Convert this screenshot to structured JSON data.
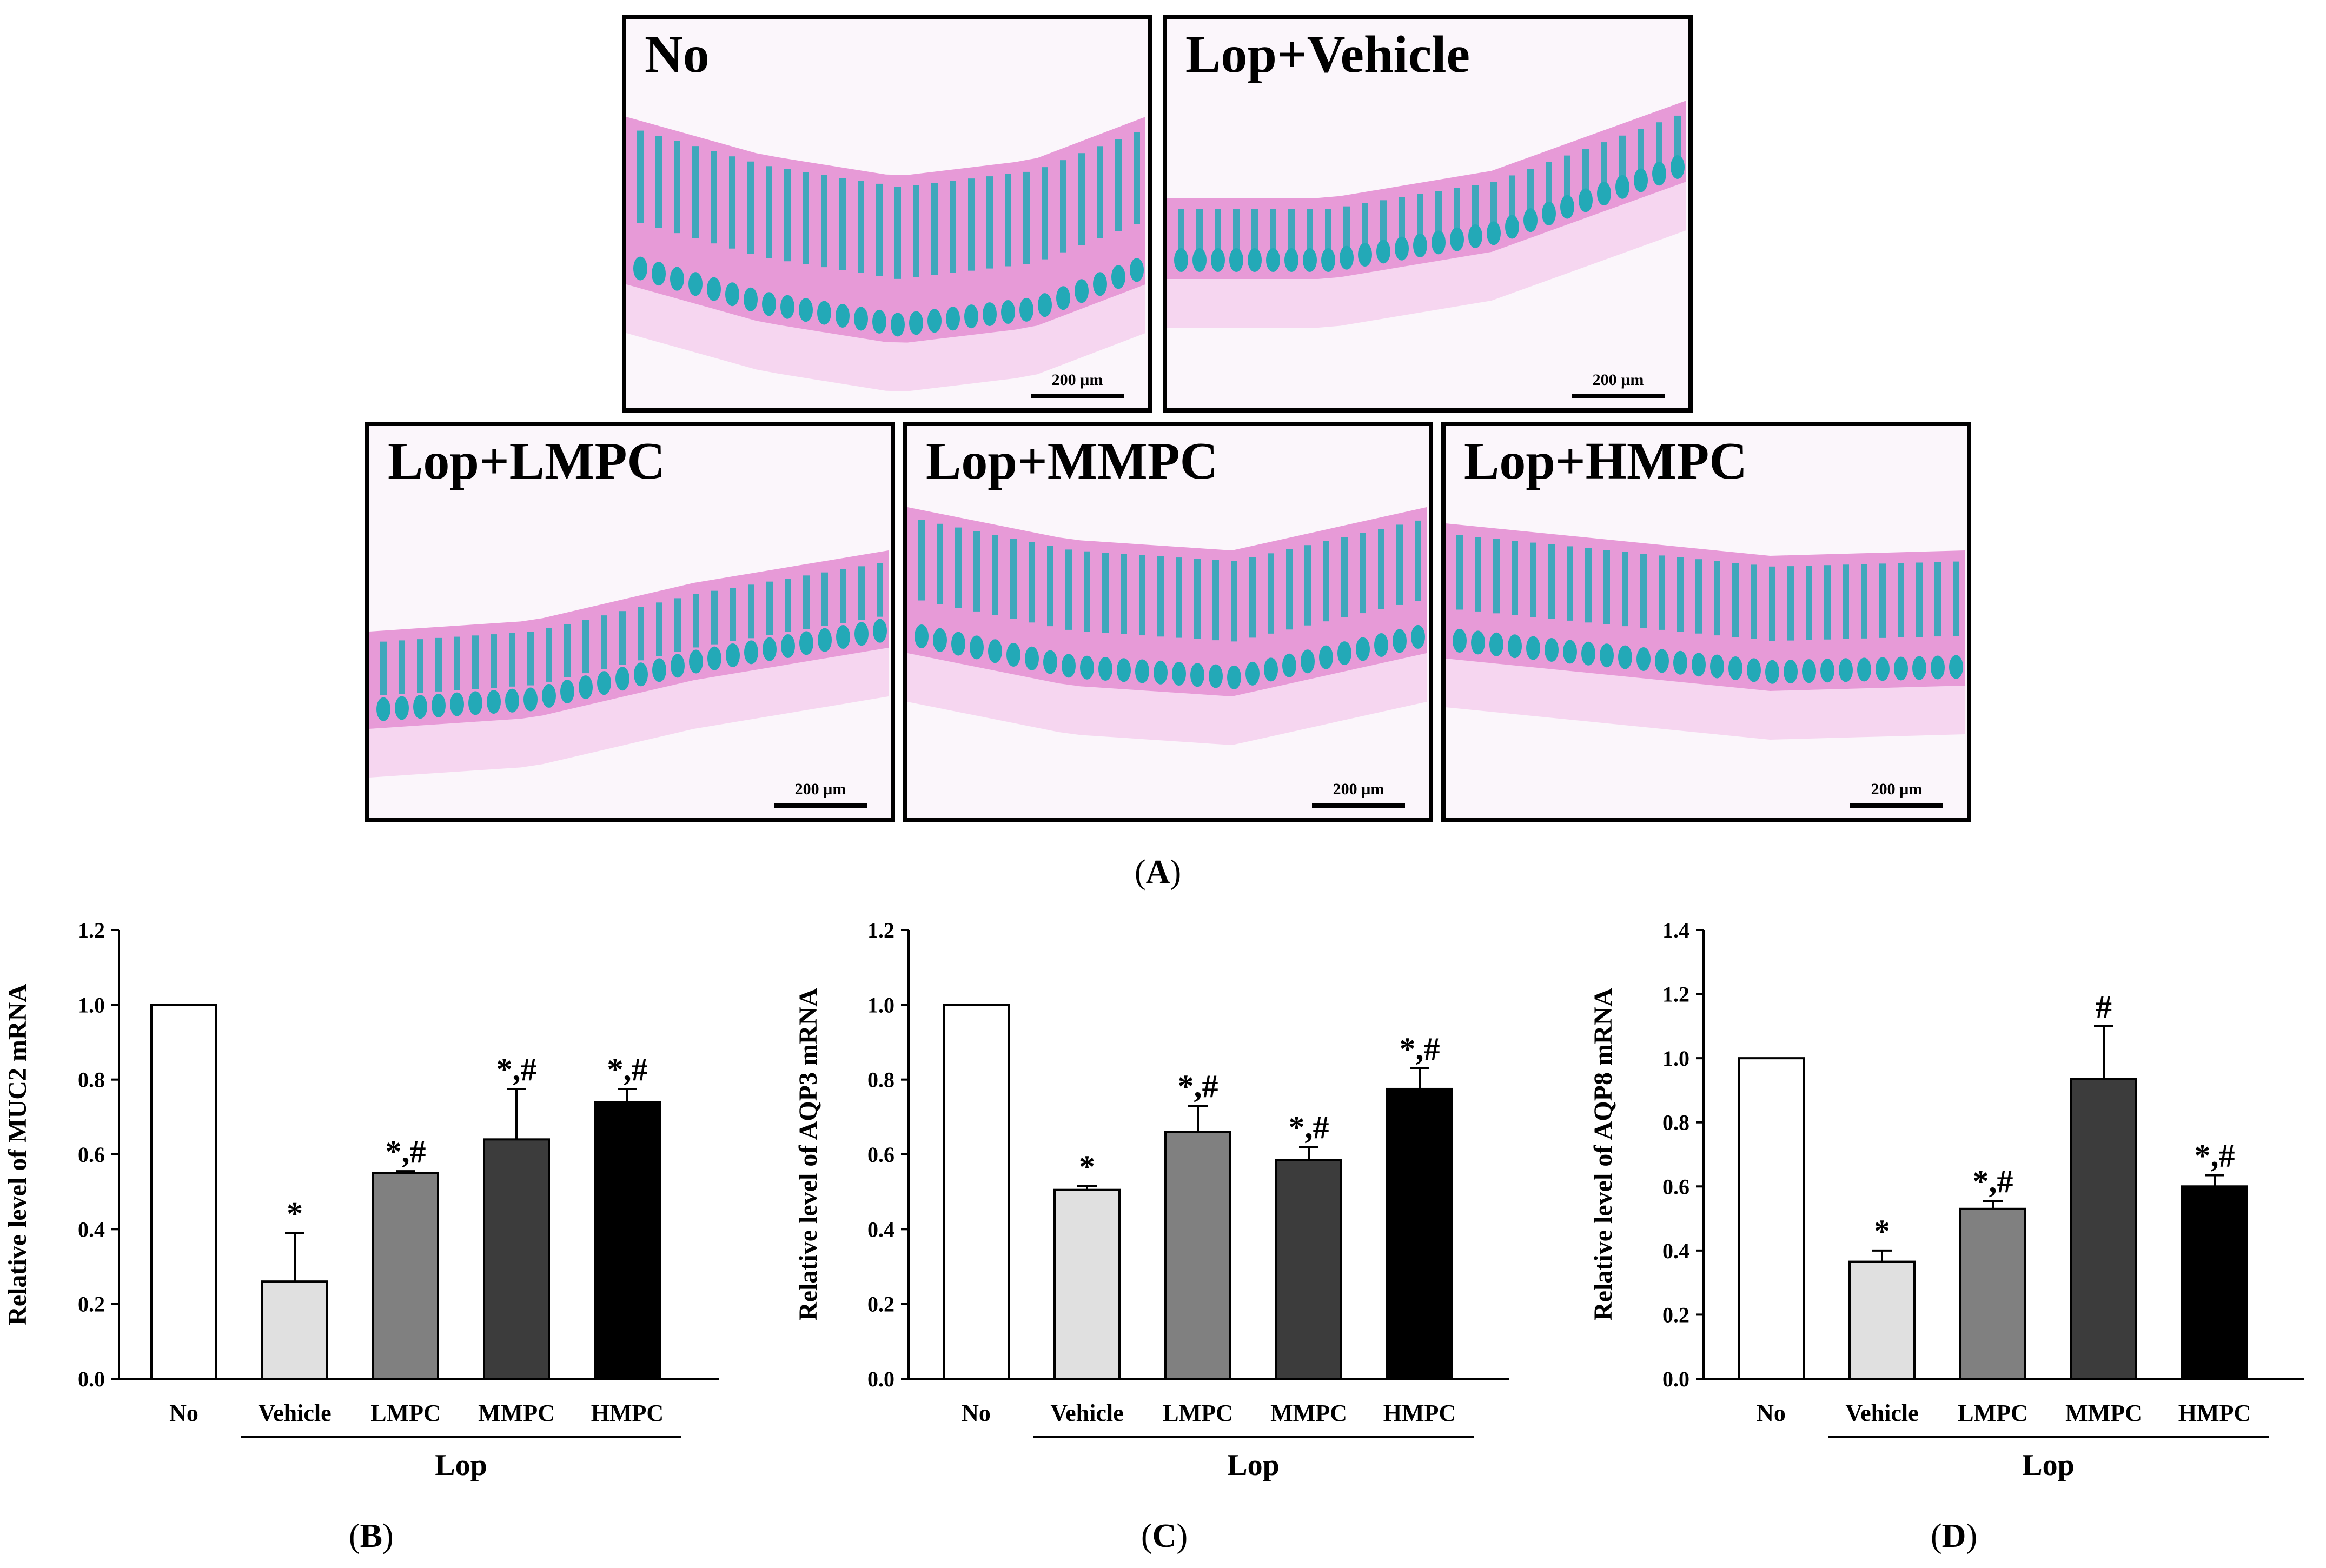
{
  "histology": {
    "panels": [
      {
        "label": "No",
        "scale_bar": "200 µm"
      },
      {
        "label": "Lop+Vehicle",
        "scale_bar": "200 µm"
      },
      {
        "label": "Lop+LMPC",
        "scale_bar": "200 µm"
      },
      {
        "label": "Lop+MMPC",
        "scale_bar": "200 µm"
      },
      {
        "label": "Lop+HMPC",
        "scale_bar": "200 µm"
      }
    ],
    "tissue_colors": {
      "background": "#fbf6fb",
      "mucosa": "#e79ad7",
      "goblet": "#23a9b7",
      "submucosa": "#f5d3ee"
    }
  },
  "captions": {
    "A": "A",
    "B": "B",
    "C": "C",
    "D": "D"
  },
  "chart_data": [
    {
      "type": "bar",
      "panel": "B",
      "ylabel": "Relative level of MUC2 mRNA",
      "categories": [
        "No",
        "Vehicle",
        "LMPC",
        "MMPC",
        "HMPC"
      ],
      "group_label": "Lop",
      "values": [
        1.0,
        0.26,
        0.55,
        0.64,
        0.74
      ],
      "errors": [
        0.0,
        0.13,
        0.005,
        0.135,
        0.035
      ],
      "significance": [
        "",
        "*",
        "*,#",
        "*,#",
        "*,#"
      ],
      "ylim": [
        0.0,
        1.2
      ],
      "yticks": [
        "0.0",
        "0.2",
        "0.4",
        "0.6",
        "0.8",
        "1.0",
        "1.2"
      ],
      "colors": [
        "#ffffff",
        "#e0e0e0",
        "#808080",
        "#3c3c3c",
        "#000000"
      ]
    },
    {
      "type": "bar",
      "panel": "C",
      "ylabel": "Relative level of AQP3 mRNA",
      "categories": [
        "No",
        "Vehicle",
        "LMPC",
        "MMPC",
        "HMPC"
      ],
      "group_label": "Lop",
      "values": [
        1.0,
        0.505,
        0.66,
        0.585,
        0.775
      ],
      "errors": [
        0.0,
        0.01,
        0.07,
        0.035,
        0.055
      ],
      "significance": [
        "",
        "*",
        "*,#",
        "*,#",
        "*,#"
      ],
      "ylim": [
        0.0,
        1.2
      ],
      "yticks": [
        "0.0",
        "0.2",
        "0.4",
        "0.6",
        "0.8",
        "1.0",
        "1.2"
      ],
      "colors": [
        "#ffffff",
        "#e0e0e0",
        "#808080",
        "#3c3c3c",
        "#000000"
      ]
    },
    {
      "type": "bar",
      "panel": "D",
      "ylabel": "Relative level of AQP8 mRNA",
      "categories": [
        "No",
        "Vehicle",
        "LMPC",
        "MMPC",
        "HMPC"
      ],
      "group_label": "Lop",
      "values": [
        1.0,
        0.365,
        0.53,
        0.935,
        0.6
      ],
      "errors": [
        0.0,
        0.035,
        0.025,
        0.165,
        0.035
      ],
      "significance": [
        "",
        "*",
        "*,#",
        "#",
        "*,#"
      ],
      "ylim": [
        0.0,
        1.4
      ],
      "yticks": [
        "0.0",
        "0.2",
        "0.4",
        "0.6",
        "0.8",
        "1.0",
        "1.2",
        "1.4"
      ],
      "colors": [
        "#ffffff",
        "#e0e0e0",
        "#808080",
        "#3c3c3c",
        "#000000"
      ]
    }
  ]
}
